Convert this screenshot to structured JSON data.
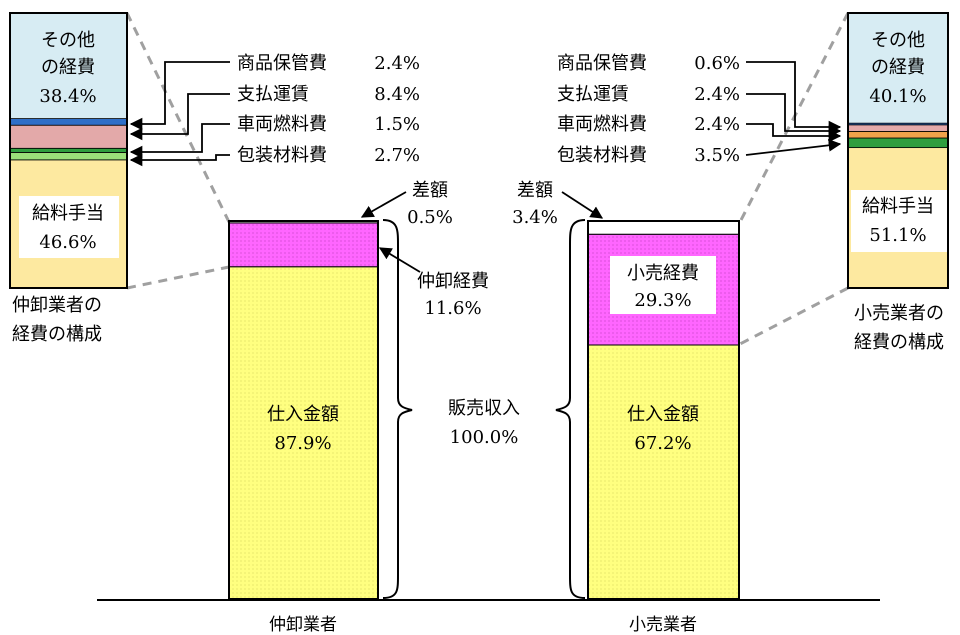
{
  "chart_data": [
    {
      "type": "bar",
      "categories": [
        "仲卸業者"
      ],
      "series": [
        {
          "name": "仕入金額",
          "values": [
            87.9
          ]
        },
        {
          "name": "仲卸経費",
          "values": [
            11.6
          ]
        },
        {
          "name": "差額",
          "values": [
            0.5
          ]
        }
      ],
      "labels": {
        "purchase": "仕入金額",
        "purchase_value": "87.9%",
        "expense": "仲卸経費",
        "expense_value": "11.6%",
        "margin": "差額",
        "margin_value": "0.5%"
      },
      "ylim": [
        0,
        100
      ]
    },
    {
      "type": "bar",
      "categories": [
        "小売業者"
      ],
      "series": [
        {
          "name": "仕入金額",
          "values": [
            67.2
          ]
        },
        {
          "name": "小売経費",
          "values": [
            29.3
          ]
        },
        {
          "name": "差額",
          "values": [
            3.4
          ]
        }
      ],
      "labels": {
        "purchase": "仕入金額",
        "purchase_value": "67.2%",
        "expense": "小売経費",
        "expense_value": "29.3%",
        "margin": "差額",
        "margin_value": "3.4%"
      },
      "ylim": [
        0,
        100
      ]
    },
    {
      "type": "bar",
      "title": "仲卸業者の経費の構成",
      "title_line1": "仲卸業者の",
      "title_line2": "経費の構成",
      "segments": [
        {
          "name": "給料手当",
          "value": 46.6,
          "label": "46.6%",
          "color": "#fde9a0"
        },
        {
          "name": "包装材料費",
          "value": 2.7,
          "label": "2.7%",
          "color": "#9be07a"
        },
        {
          "name": "車両燃料費",
          "value": 1.5,
          "label": "1.5%",
          "color": "#2f9e3e"
        },
        {
          "name": "支払運賃",
          "value": 8.4,
          "label": "8.4%",
          "color": "#e3a9a9"
        },
        {
          "name": "商品保管費",
          "value": 2.4,
          "label": "2.4%",
          "color": "#2f6fc8"
        },
        {
          "name": "その他の経費",
          "value": 38.4,
          "label": "38.4%",
          "color": "#d7ecf3",
          "label_line1": "その他",
          "label_line2": "の経費"
        }
      ]
    },
    {
      "type": "bar",
      "title": "小売業者の経費の構成",
      "title_line1": "小売業者の",
      "title_line2": "経費の構成",
      "segments": [
        {
          "name": "給料手当",
          "value": 51.1,
          "label": "51.1%",
          "color": "#fde9a0"
        },
        {
          "name": "包装材料費",
          "value": 3.5,
          "label": "3.5%",
          "color": "#2f9e3e"
        },
        {
          "name": "車両燃料費",
          "value": 2.4,
          "label": "2.4%",
          "color": "#f0a24a"
        },
        {
          "name": "支払運賃",
          "value": 2.4,
          "label": "2.4%",
          "color": "#e3a9a9"
        },
        {
          "name": "商品保管費",
          "value": 0.6,
          "label": "0.6%",
          "color": "#2f6fc8"
        },
        {
          "name": "その他の経費",
          "value": 40.1,
          "label": "40.1%",
          "color": "#d7ecf3",
          "label_line1": "その他",
          "label_line2": "の経費"
        }
      ]
    }
  ],
  "center_label": {
    "line1": "販売収入",
    "line2": "100.0%"
  },
  "colors": {
    "purchase": "#ffff80",
    "expense": "#ff66ff",
    "margin": "#ffffff",
    "connector": "#a0a0a0"
  }
}
